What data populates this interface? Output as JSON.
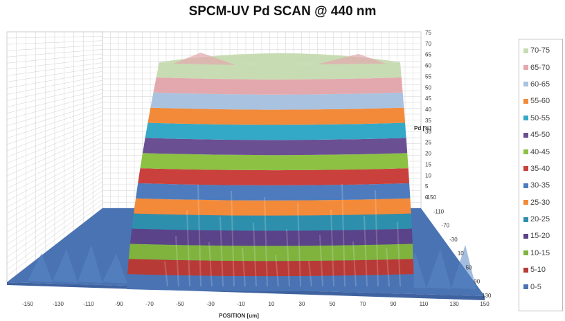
{
  "chart_data": {
    "type": "surface",
    "title": "SPCM-UV Pd SCAN @ 440 nm",
    "xlabel": "POSITION [um]",
    "zlabel": "Pd [%]",
    "x_ticks": [
      "-150",
      "-130",
      "-110",
      "-90",
      "-70",
      "-50",
      "-30",
      "-10",
      "10",
      "30",
      "50",
      "70",
      "90",
      "110",
      "130",
      "150"
    ],
    "y_ticks": [
      "-150",
      "-110",
      "-70",
      "-30",
      "10",
      "50",
      "90",
      "130"
    ],
    "z_ticks": [
      "0",
      "5",
      "10",
      "15",
      "20",
      "25",
      "30",
      "35",
      "40",
      "45",
      "50",
      "55",
      "60",
      "65",
      "70",
      "75"
    ],
    "zlim": [
      0,
      75
    ],
    "xlim": [
      -150,
      150
    ],
    "plateau_value": 75,
    "plateau_x_range": [
      -90,
      90
    ],
    "legend_position": "right",
    "legend": [
      {
        "label": "70-75",
        "color": "#c8dcb4"
      },
      {
        "label": "65-70",
        "color": "#e3a8ad"
      },
      {
        "label": "60-65",
        "color": "#a9c2e0"
      },
      {
        "label": "55-60",
        "color": "#f28a3a"
      },
      {
        "label": "50-55",
        "color": "#33a9c7"
      },
      {
        "label": "45-50",
        "color": "#6b4f93"
      },
      {
        "label": "40-45",
        "color": "#8cc144"
      },
      {
        "label": "35-40",
        "color": "#c9403c"
      },
      {
        "label": "30-35",
        "color": "#4d7bbd"
      },
      {
        "label": "25-30",
        "color": "#f28a3a"
      },
      {
        "label": "20-25",
        "color": "#2e8fad"
      },
      {
        "label": "15-20",
        "color": "#5a4388"
      },
      {
        "label": "10-15",
        "color": "#7fb33e"
      },
      {
        "label": "5-10",
        "color": "#b83a36"
      },
      {
        "label": "0-5",
        "color": "#4a73b3"
      }
    ]
  }
}
